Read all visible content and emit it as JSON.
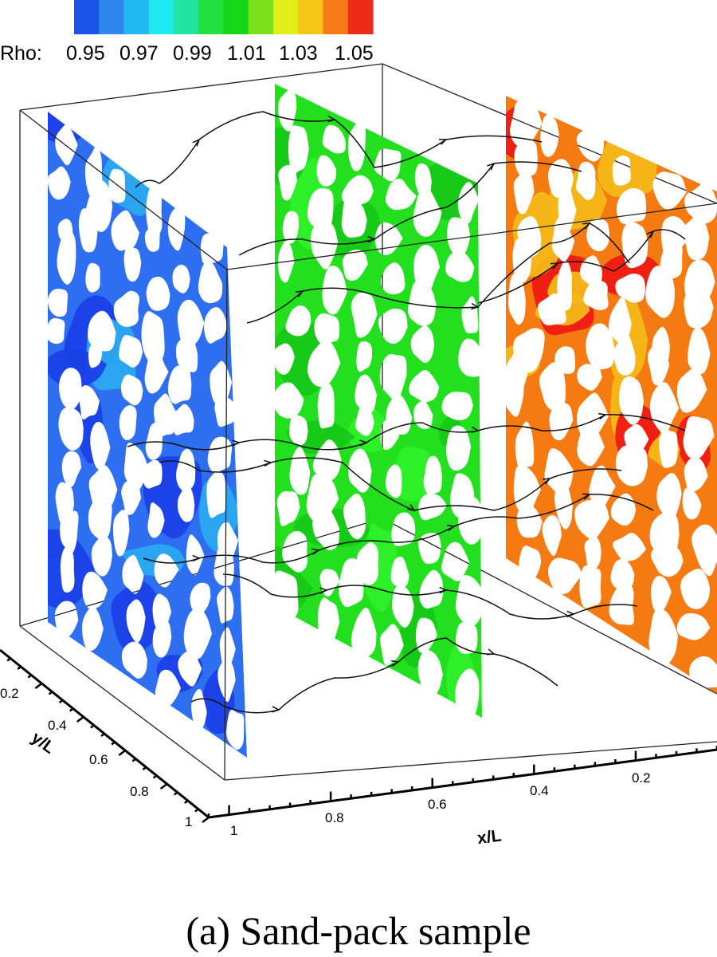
{
  "legend": {
    "variable": "Rho:",
    "levels": [
      "0.95",
      "0.97",
      "0.99",
      "1.01",
      "1.03",
      "1.05"
    ],
    "colors": [
      "#1a55e8",
      "#2e86ee",
      "#22b9f0",
      "#1ee8f0",
      "#20e6a0",
      "#22e040",
      "#18d618",
      "#7ae01a",
      "#e2ee18",
      "#f6c618",
      "#f67a18",
      "#ee2a18"
    ]
  },
  "axes": {
    "y_title": "y/L",
    "y_ticks": [
      "0.2",
      "0.4",
      "0.6",
      "0.8",
      "1"
    ],
    "x_title": "x/L",
    "x_ticks": [
      "1",
      "0.8",
      "0.6",
      "0.4",
      "0.2"
    ]
  },
  "slices": [
    {
      "name": "left-slice",
      "color": "#2e6ef0",
      "accent": "#1a40e8",
      "secondary": "#2aa8f0"
    },
    {
      "name": "middle-slice",
      "color": "#22e01e",
      "accent": "#18c818",
      "secondary": "#2ef02a"
    },
    {
      "name": "right-slice",
      "color": "#f67a12",
      "accent": "#f6b818",
      "secondary": "#ee1a12"
    }
  ],
  "caption": "(a) Sand-pack sample"
}
